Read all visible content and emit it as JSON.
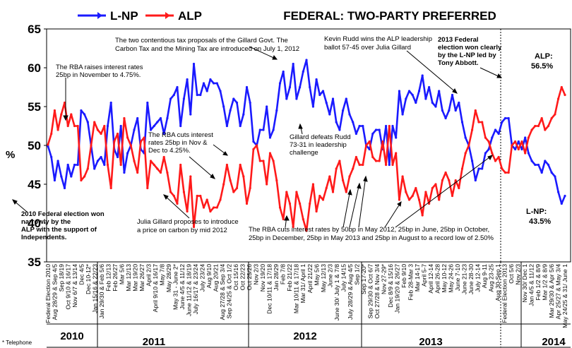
{
  "title": "FEDERAL: TWO-PARTY PREFERRED",
  "legend": [
    {
      "name": "L-NP",
      "color": "#1a1aff"
    },
    {
      "name": "ALP",
      "color": "#ff1a1a"
    }
  ],
  "ylabel": "%",
  "footnote": "* Telephone",
  "years": [
    "2010",
    "2011",
    "2012",
    "2013",
    "2014"
  ],
  "x_ticks": [
    "Federal Election 2010",
    "Aug 28/29 & Sep 4/5",
    "Sep 18/19",
    "Oct 9/10 & 16/17",
    "Nov 6/7 & 13/14",
    "Dec 4/5",
    "Dec 10-12*",
    "Jan 15/16 & 22/23",
    "Jan 29/30 & Feb 5/6",
    "Feb 12/13",
    "Feb 26/27",
    "Mar 5/6",
    "Mar 12/13",
    "Mar 19/20",
    "Mar 26/27",
    "April 2/3",
    "April 9/10 & 16/17",
    "May 7/8",
    "May 28/29",
    "May 31 - June 2*",
    "June 4/5 & 11/12",
    "June 11/12 & 18/19",
    "July 16/17 & 23/24",
    "July 23/24",
    "Aug 9/10",
    "Aug 20/21",
    "Aug 27/28 & Sep 3/4",
    "Sep 24/25 & Oct 1/2",
    "Oct 15/16",
    "Oct 22/23",
    "Oct 25/26",
    "Nov 2/3",
    "Nov 19/20",
    "Dec 10/11 & 17/18",
    "Jan 28/29",
    "Feb 7/8",
    "Feb 21/22",
    "Mar 10/11 & 17/18",
    "Mar 31/ April 1",
    "April 21/22",
    "May 5/6",
    "May 12/13",
    "June 2/3",
    "June 30/ July 1 & 7/8",
    "July 14/15",
    "July 28/29 & Aug 4/5",
    "Sep 1/2",
    "Sep 17-20*",
    "Sep 29/30 & Oct 6/7",
    "Oct 27/28 & Nov 3/4",
    "Nov 27-29*",
    "Dec 8/9 & 15/16",
    "Jan 19/20 & 26/27",
    "Feb 9/10",
    "Feb 28-Mar 3",
    "Mar 14-17",
    "April 5-7",
    "April 12-14",
    "April 26-28",
    "May 10-12",
    "May 24-26",
    "June 7-10",
    "June 21-23",
    "June 28-30",
    "July 12-14",
    "Aug 9-11",
    "Aug 23-25",
    "Aug 30-Sep 1",
    "Federal Election 2013",
    "Oct 5/6",
    "Nov 2/3",
    "Nov 30/ Dec 1",
    "Jan 4/5 & 11/12",
    "Feb 1/2 & 8/9",
    "Mar 1/2 & 8/9",
    "Mar 29/30 & Apr 5/6",
    "Apr 25/27 & May 3/4",
    "May 24/25 & 31/ June 1"
  ],
  "annotations": {
    "carbon_tax": "The two contentious tax proposals of the Gillard Govt. The Carbon Tax and the Mining Tax are introduced on July 1, 2012",
    "rba_raise": "The RBA raises interest rates 25bp in November to 4.75%.",
    "rudd_wins": "Kevin Rudd wins the ALP leadership ballot 57-45 over Julia Gillard",
    "election_2013": "2013 Federal election won clearly by the L-NP led by Tony Abbott.",
    "alp_final": "ALP: 56.5%",
    "rba_cuts_2011": "The RBA cuts interest rates 25bp in Nov & Dec to 4.25%.",
    "gillard_defeats": "Gillard defeats Rudd 73-31 in leadership challenge",
    "election_2010": "2010 Federal election won narrowly by the ALP with the support of Independents.",
    "carbon_proposal": "Julia Gillard proposes to introduce a price on carbon by mid 2012",
    "rba_cuts_2012": "The RBA cuts interest rates by 50bp in May 2012, 25bp in June, 25bp in October, 25bp in December, 25bp in May 2013 and 25bp in August to a record low of 2.50%",
    "lnp_final": "L-NP: 43.5%"
  },
  "chart_data": {
    "type": "line",
    "title": "FEDERAL: TWO-PARTY PREFERRED",
    "ylabel": "%",
    "ylim": [
      35,
      65
    ],
    "yticks": [
      35,
      40,
      45,
      50,
      55,
      60,
      65
    ],
    "grid": false,
    "legend_position": "top-left",
    "periods": [
      "2010",
      "2011",
      "2012",
      "2013",
      "2014"
    ],
    "series": [
      {
        "name": "L-NP",
        "color": "#1a1aff",
        "values": [
          49.9,
          48.5,
          45.5,
          48,
          46,
          44.5,
          47.5,
          46,
          47.5,
          47.5,
          54.5,
          54,
          53,
          50,
          47,
          48,
          48.5,
          47.5,
          52.5,
          55.5,
          49.5,
          48.5,
          52.5,
          46.5,
          49,
          50,
          52,
          53.5,
          49.5,
          49,
          55.5,
          52,
          52.5,
          53,
          53.5,
          51.5,
          53.5,
          56,
          56.5,
          57.5,
          52.5,
          56,
          58.5,
          54,
          60.5,
          56.5,
          56.5,
          58,
          57,
          58.5,
          58,
          58,
          57,
          55,
          52.5,
          54.5,
          56,
          55.5,
          52.5,
          54,
          57.5,
          55.5,
          50.5,
          50,
          52,
          52,
          55,
          51,
          52,
          54.5,
          58,
          59.5,
          56,
          57.5,
          60.5,
          56,
          57.5,
          59.5,
          61,
          57.5,
          55,
          58.5,
          56.5,
          57,
          55.5,
          54,
          56,
          53,
          52,
          54.5,
          56,
          54,
          53,
          51.5,
          52.5,
          52.5,
          50,
          49.5,
          51.5,
          52,
          52,
          49.5,
          52.5,
          47.5,
          52.5,
          51,
          57,
          54,
          56,
          57,
          56.5,
          55.5,
          57,
          59,
          56,
          57.5,
          55.5,
          55,
          57,
          54.5,
          53.5,
          54.5,
          56.5,
          54.5,
          55.5,
          53,
          51,
          50,
          48,
          45.5,
          47,
          47,
          49,
          49.5,
          51,
          52,
          51.5,
          53,
          53.5,
          53.5,
          50,
          49.5,
          50.5,
          49.5,
          51,
          49,
          48,
          47.5,
          47.5,
          46.5,
          48,
          47.5,
          46.5,
          46,
          44,
          42.5,
          43.5
        ]
      },
      {
        "name": "ALP",
        "color": "#ff1a1a",
        "values": [
          50.1,
          51.5,
          54.5,
          52,
          54,
          55.5,
          52.5,
          54,
          52.5,
          52.5,
          45.5,
          46,
          47,
          50,
          53,
          52,
          51.5,
          52.5,
          47.5,
          44.5,
          50.5,
          51.5,
          47.5,
          53.5,
          51,
          50,
          48,
          46.5,
          50.5,
          51,
          44.5,
          48,
          47.5,
          47,
          46.5,
          48.5,
          46.5,
          44,
          43.5,
          42.5,
          47.5,
          44,
          41.5,
          46,
          39.5,
          43.5,
          43.5,
          42,
          43,
          41.5,
          42,
          42,
          43,
          45,
          47.5,
          45.5,
          44,
          44.5,
          47.5,
          46,
          42.5,
          44.5,
          49.5,
          50,
          48,
          48,
          45,
          49,
          48,
          45.5,
          42,
          40.5,
          44,
          42.5,
          39.5,
          44,
          42.5,
          40.5,
          39,
          42.5,
          45,
          41.5,
          43.5,
          43,
          44.5,
          46,
          44,
          47,
          48,
          45.5,
          44,
          46,
          47,
          48.5,
          47.5,
          47.5,
          50,
          50.5,
          48.5,
          48,
          48,
          50.5,
          47.5,
          52.5,
          47.5,
          49,
          43,
          46,
          44,
          43,
          43.5,
          44.5,
          43,
          41,
          44,
          42.5,
          44.5,
          45,
          43,
          45.5,
          46.5,
          45.5,
          43.5,
          45.5,
          44.5,
          47,
          49,
          50,
          52,
          54.5,
          53,
          53,
          51,
          50.5,
          49,
          48,
          48.5,
          47,
          46.5,
          46.5,
          50,
          50.5,
          49.5,
          50.5,
          49,
          51,
          52,
          52.5,
          52.5,
          53.5,
          52,
          52.5,
          53.5,
          54,
          56,
          57.5,
          56.5
        ]
      }
    ]
  }
}
